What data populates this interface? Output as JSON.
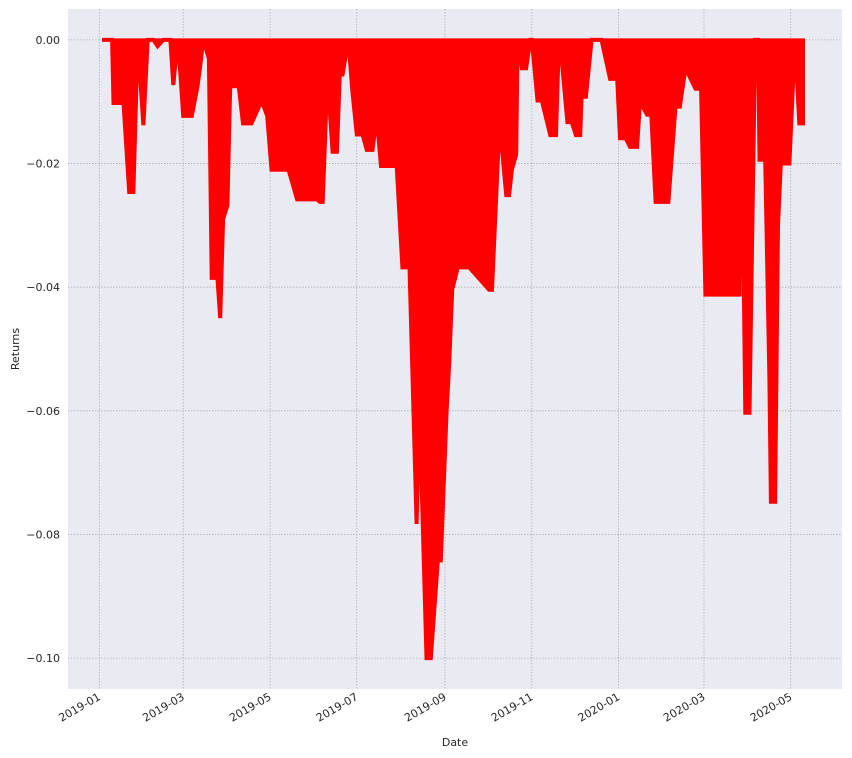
{
  "chart_data": {
    "type": "area",
    "xlabel": "Date",
    "ylabel": "Returns",
    "ylim": [
      -0.105,
      0.005
    ],
    "xlim": [
      "2018-12-10",
      "2020-06-06"
    ],
    "grid": true,
    "colors": {
      "series": "#ff0000",
      "background": "#eaeaf2",
      "grid": "#b0b0b0"
    },
    "yticks": [
      0.0,
      -0.02,
      -0.04,
      -0.06,
      -0.08,
      -0.1
    ],
    "ytick_labels": [
      "0.00",
      "−0.02",
      "−0.04",
      "−0.06",
      "−0.08",
      "−0.10"
    ],
    "xticks": [
      "2019-01-01",
      "2019-03-01",
      "2019-05-01",
      "2019-07-01",
      "2019-09-01",
      "2019-11-01",
      "2020-01-01",
      "2020-03-01",
      "2020-05-01"
    ],
    "xtick_labels": [
      "2019-01",
      "2019-03",
      "2019-05",
      "2019-07",
      "2019-09",
      "2019-11",
      "2020-01",
      "2020-03",
      "2020-05"
    ],
    "series": [
      {
        "x": [
          "2019-01-03",
          "2019-01-10",
          "2019-01-11",
          "2019-01-18",
          "2019-01-22",
          "2019-01-25",
          "2019-01-28",
          "2019-02-01",
          "2019-02-04",
          "2019-02-08",
          "2019-02-11",
          "2019-02-15",
          "2019-02-20",
          "2019-02-22",
          "2019-02-25",
          "2019-02-27",
          "2019-03-01",
          "2019-03-07",
          "2019-03-11",
          "2019-03-13",
          "2019-03-15",
          "2019-03-19",
          "2019-03-21",
          "2019-03-25",
          "2019-03-27",
          "2019-03-29",
          "2019-04-01",
          "2019-04-03",
          "2019-04-09",
          "2019-04-12",
          "2019-04-18",
          "2019-04-24",
          "2019-04-26",
          "2019-04-29",
          "2019-05-02",
          "2019-05-14",
          "2019-05-20",
          "2019-06-03",
          "2019-06-05",
          "2019-06-07",
          "2019-06-10",
          "2019-06-11",
          "2019-06-14",
          "2019-06-17",
          "2019-06-19",
          "2019-06-21",
          "2019-06-25",
          "2019-06-28",
          "2019-07-01",
          "2019-07-05",
          "2019-07-08",
          "2019-07-12",
          "2019-07-15",
          "2019-07-18",
          "2019-07-22",
          "2019-07-26",
          "2019-07-29",
          "2019-08-02",
          "2019-08-07",
          "2019-08-12",
          "2019-08-14",
          "2019-08-15",
          "2019-08-19",
          "2019-08-22",
          "2019-08-27",
          "2019-08-29",
          "2019-09-02",
          "2019-09-04",
          "2019-09-06",
          "2019-09-10",
          "2019-09-12",
          "2019-09-16",
          "2019-09-18",
          "2019-10-02",
          "2019-10-04",
          "2019-10-09",
          "2019-10-10",
          "2019-10-14",
          "2019-10-16",
          "2019-10-18",
          "2019-10-21",
          "2019-10-22",
          "2019-10-25",
          "2019-10-28",
          "2019-10-31",
          "2019-11-01",
          "2019-11-05",
          "2019-11-08",
          "2019-11-14",
          "2019-11-18",
          "2019-11-20",
          "2019-11-22",
          "2019-11-26",
          "2019-11-29",
          "2019-12-02",
          "2019-12-05",
          "2019-12-06",
          "2019-12-09",
          "2019-12-13",
          "2019-12-17",
          "2019-12-20",
          "2019-12-26",
          "2019-12-30",
          "2019-12-31",
          "2020-01-02",
          "2020-01-06",
          "2020-01-09",
          "2020-01-14",
          "2020-01-16",
          "2020-01-21",
          "2020-01-24",
          "2020-01-27",
          "2020-02-03",
          "2020-02-05",
          "2020-02-10",
          "2020-02-13",
          "2020-02-17",
          "2020-02-24",
          "2020-02-26",
          "2020-02-28",
          "2020-03-02",
          "2020-03-05",
          "2020-03-16",
          "2020-03-26",
          "2020-03-27",
          "2020-03-30",
          "2020-04-02",
          "2020-04-06",
          "2020-04-08",
          "2020-04-09",
          "2020-04-13",
          "2020-04-16",
          "2020-04-17",
          "2020-04-20",
          "2020-04-22",
          "2020-04-24",
          "2020-04-27",
          "2020-04-30",
          "2020-05-04",
          "2020-05-07",
          "2020-05-11"
        ],
        "values": [
          0.0,
          0.0,
          -0.0102,
          -0.0102,
          -0.0246,
          -0.0246,
          0.0,
          -0.0138,
          0.0,
          0.0,
          -0.001,
          0.0,
          0.0,
          -0.0073,
          0.0,
          -0.0055,
          -0.0123,
          -0.0123,
          -0.0075,
          -0.0041,
          0.0,
          -0.003,
          -0.0385,
          -0.0385,
          -0.045,
          -0.029,
          -0.0268,
          -0.0075,
          -0.0075,
          -0.0135,
          -0.0135,
          -0.0104,
          -0.0104,
          -0.0123,
          -0.021,
          -0.021,
          -0.0258,
          -0.0258,
          -0.0262,
          -0.0262,
          -0.0082,
          -0.0082,
          -0.0181,
          -0.0181,
          -0.0056,
          -0.0056,
          0.0,
          -0.0087,
          -0.0153,
          -0.0153,
          -0.0178,
          -0.0178,
          -0.0125,
          -0.0204,
          -0.0204,
          -0.0204,
          -0.0204,
          -0.0368,
          -0.0368,
          -0.0783,
          -0.06,
          -0.0675,
          -0.1,
          -0.1,
          -0.0842,
          -0.0842,
          -0.0605,
          -0.052,
          -0.0404,
          -0.0368,
          -0.0368,
          -0.0368,
          -0.0368,
          -0.0404,
          -0.0404,
          -0.015,
          -0.015,
          -0.0251,
          -0.0251,
          -0.021,
          -0.0185,
          0.0,
          -0.0046,
          -0.0046,
          0.0,
          0.0,
          -0.0098,
          -0.0098,
          -0.0154,
          -0.0154,
          0.0,
          -0.0032,
          -0.0133,
          -0.0133,
          -0.0154,
          -0.0154,
          -0.0092,
          -0.0092,
          0.0,
          0.0,
          0.0,
          -0.0063,
          -0.0063,
          -0.0063,
          -0.0159,
          -0.0159,
          -0.0173,
          -0.0173,
          -0.01,
          -0.0121,
          -0.0121,
          -0.0262,
          -0.0262,
          -0.0262,
          -0.0108,
          -0.0108,
          -0.0046,
          -0.0079,
          -0.0079,
          -0.0079,
          -0.0412,
          -0.0412,
          -0.0412,
          -0.0412,
          0.0,
          -0.0603,
          -0.0603,
          0.0,
          0.0,
          -0.0194,
          -0.0194,
          -0.0547,
          -0.0747,
          -0.0747,
          -0.03,
          -0.02,
          -0.02,
          -0.02,
          0.0,
          -0.0135,
          -0.0135
        ]
      }
    ]
  }
}
